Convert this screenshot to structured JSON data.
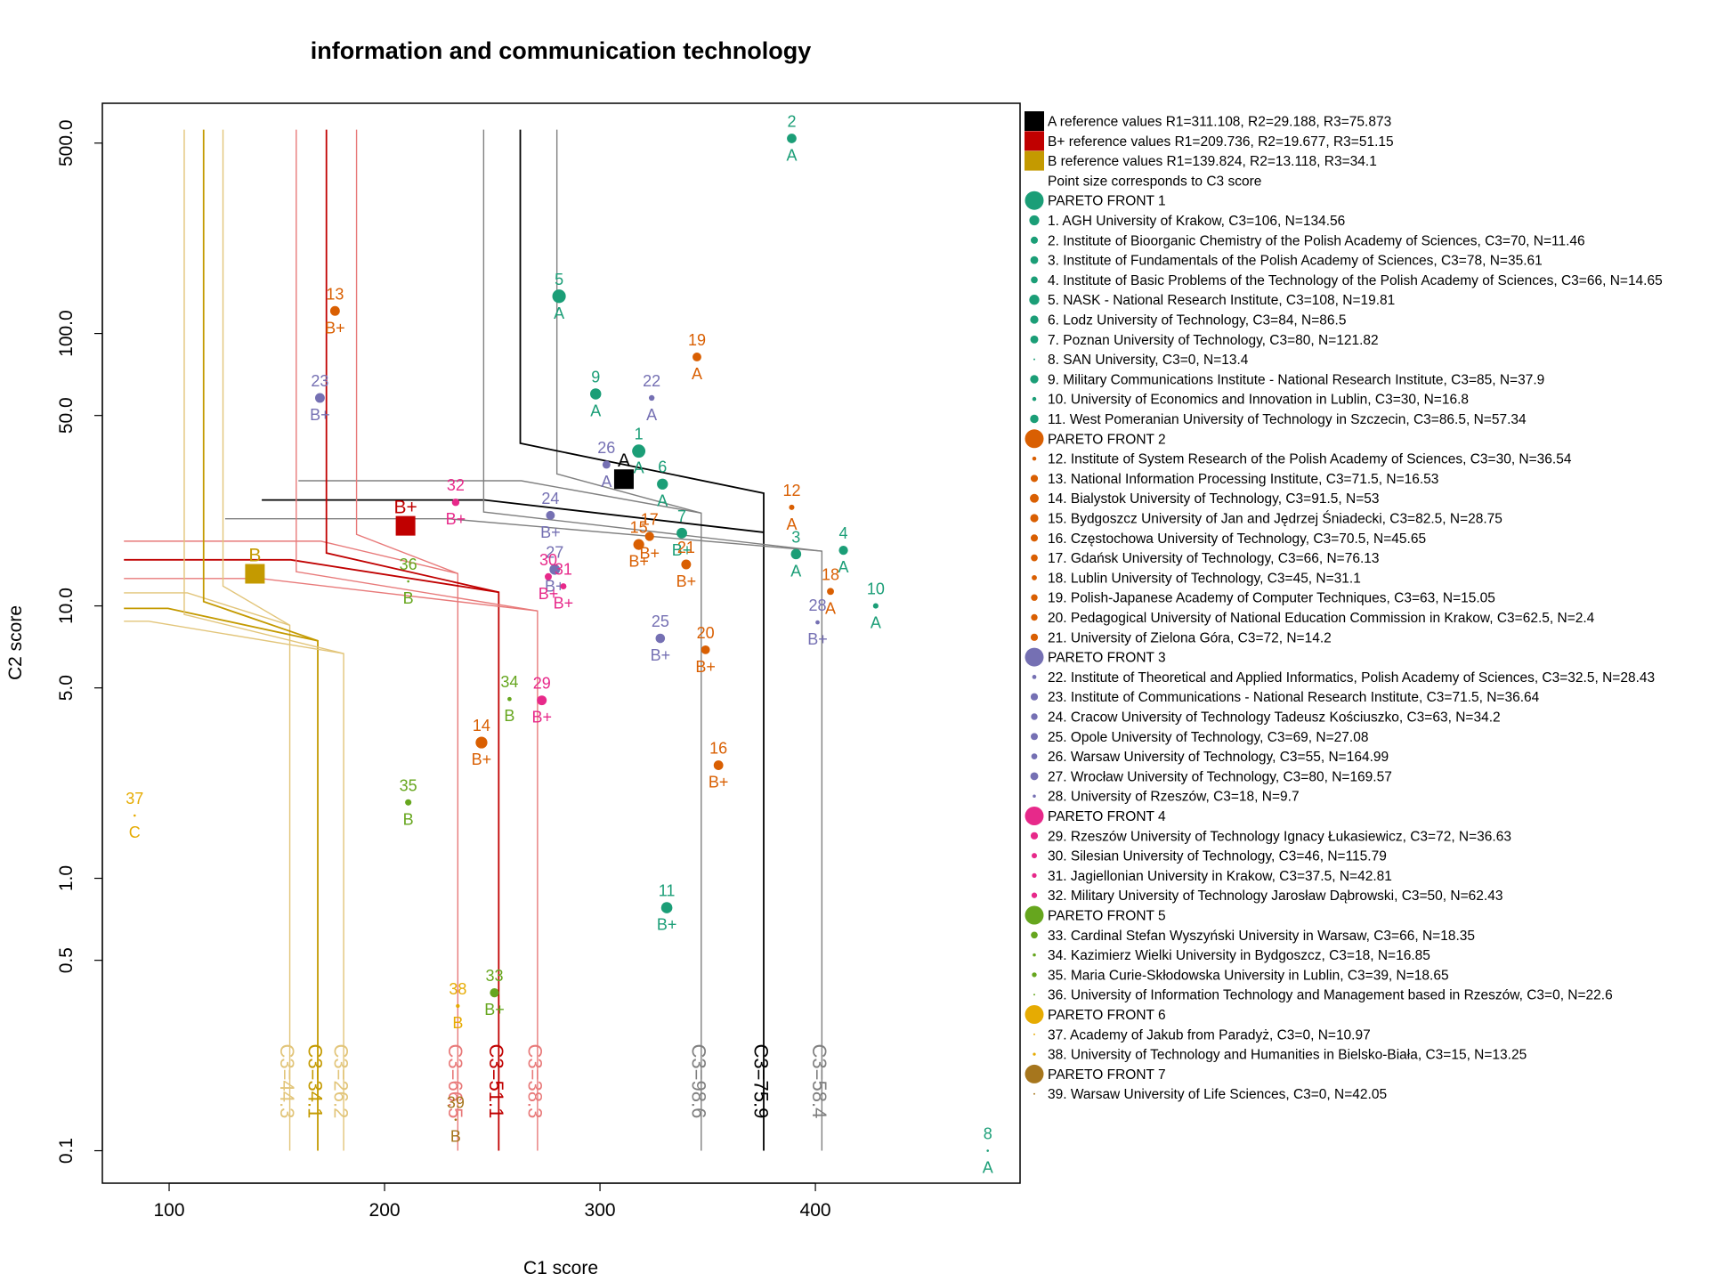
{
  "chart_data": {
    "type": "scatter",
    "title": "information and communication technology",
    "xlabel": "C1 score",
    "ylabel": "C2 score",
    "x_scale": "linear",
    "y_scale": "log",
    "xlim": [
      69,
      495
    ],
    "ylim": [
      0.076,
      700
    ],
    "x_ticks": [
      100,
      200,
      300,
      400
    ],
    "x_tick_labels": [
      "100",
      "200",
      "300",
      "400"
    ],
    "y_ticks": [
      0.1,
      0.5,
      1,
      5,
      10,
      50,
      100,
      500
    ],
    "y_tick_labels": [
      "0.1",
      "0.5",
      "1.0",
      "5.0",
      "10.0",
      "50.0",
      "100.0",
      "500.0"
    ],
    "grid": false,
    "legend_position": "right",
    "colors": {
      "front1": "#1b9e77",
      "front2": "#d95f02",
      "front3": "#7570b3",
      "front4": "#e7298a",
      "front5": "#66a61e",
      "front6": "#e6ab02",
      "front7": "#a6761d",
      "ref_A": "#000000",
      "ref_Bplus": "#c00000",
      "ref_B": "#c49a00",
      "iso_A_light": "#808080",
      "iso_Bplus_light": "#e87a7a",
      "iso_B_light": "#e2c57a"
    },
    "references": [
      {
        "key": "A",
        "label": "A",
        "x": 311.108,
        "y": 29.188,
        "color": "#000000"
      },
      {
        "key": "Bplus",
        "label": "B+",
        "x": 209.736,
        "y": 19.677,
        "color": "#c00000"
      },
      {
        "key": "B",
        "label": "B",
        "x": 139.824,
        "y": 13.118,
        "color": "#c49a00"
      }
    ],
    "iso_curves": [
      {
        "label": "C3=98.6",
        "color": "#808080",
        "x_vertical": 347,
        "y_horizontal": 40,
        "top_x": 280,
        "label_x": 346
      },
      {
        "label": "C3=75.9",
        "color": "#000000",
        "x_vertical": 376,
        "y_horizontal": 34,
        "top_x": 263,
        "label_x": 375,
        "start_x": 188
      },
      {
        "label": "C3=58.4",
        "color": "#808080",
        "x_vertical": 403,
        "y_horizontal": 29,
        "top_x": 246,
        "label_x": 402
      },
      {
        "label": "C3=66.5",
        "color": "#e87a7a",
        "x_vertical": 234,
        "y_horizontal": 24,
        "top_x": 187,
        "label_x": 233
      },
      {
        "label": "C3=51.1",
        "color": "#c00000",
        "x_vertical": 253,
        "y_horizontal": 20.5,
        "top_x": 173,
        "label_x": 252
      },
      {
        "label": "C3=38.3",
        "color": "#e87a7a",
        "x_vertical": 271,
        "y_horizontal": 17.5,
        "top_x": 159,
        "label_x": 270
      },
      {
        "label": "C3=44.3",
        "color": "#e2c57a",
        "x_vertical": 156,
        "y_horizontal": 15.5,
        "top_x": 125,
        "label_x": 155
      },
      {
        "label": "C3=34.1",
        "color": "#c49a00",
        "x_vertical": 169,
        "y_horizontal": 13.6,
        "top_x": 116,
        "label_x": 168
      },
      {
        "label": "C3=26.2",
        "color": "#e2c57a",
        "x_vertical": 181,
        "y_horizontal": 12.2,
        "top_x": 107,
        "label_x": 180
      }
    ],
    "points": [
      {
        "id": "1",
        "x": 318,
        "y": 37,
        "c3": 106,
        "front": 1,
        "grade": "A"
      },
      {
        "id": "2",
        "x": 389,
        "y": 520,
        "c3": 70,
        "front": 1,
        "grade": "A"
      },
      {
        "id": "3",
        "x": 391,
        "y": 15.5,
        "c3": 78,
        "front": 1,
        "grade": "A"
      },
      {
        "id": "4",
        "x": 413,
        "y": 16,
        "c3": 66,
        "front": 1,
        "grade": "A"
      },
      {
        "id": "5",
        "x": 281,
        "y": 137,
        "c3": 108,
        "front": 1,
        "grade": "A"
      },
      {
        "id": "6",
        "x": 329,
        "y": 28,
        "c3": 84,
        "front": 1,
        "grade": "A"
      },
      {
        "id": "7",
        "x": 338,
        "y": 18.5,
        "c3": 80,
        "front": 1,
        "grade": "B+"
      },
      {
        "id": "8",
        "x": 480,
        "y": 0.1,
        "c3": 0,
        "front": 1,
        "grade": "A"
      },
      {
        "id": "9",
        "x": 298,
        "y": 60,
        "c3": 85,
        "front": 1,
        "grade": "A"
      },
      {
        "id": "10",
        "x": 428,
        "y": 10,
        "c3": 30,
        "front": 1,
        "grade": "A"
      },
      {
        "id": "11",
        "x": 331,
        "y": 0.78,
        "c3": 86.5,
        "front": 1,
        "grade": "B+"
      },
      {
        "id": "12",
        "x": 389,
        "y": 23,
        "c3": 30,
        "front": 2,
        "grade": "A"
      },
      {
        "id": "13",
        "x": 177,
        "y": 121,
        "c3": 71.5,
        "front": 2,
        "grade": "B+"
      },
      {
        "id": "14",
        "x": 245,
        "y": 3.15,
        "c3": 91.5,
        "front": 2,
        "grade": "B+"
      },
      {
        "id": "15",
        "x": 318,
        "y": 16.8,
        "c3": 82.5,
        "front": 2,
        "grade": "B+"
      },
      {
        "id": "16",
        "x": 355,
        "y": 2.6,
        "c3": 70.5,
        "front": 2,
        "grade": "B+"
      },
      {
        "id": "17",
        "x": 323,
        "y": 18,
        "c3": 66,
        "front": 2,
        "grade": "B+"
      },
      {
        "id": "18",
        "x": 407,
        "y": 11.3,
        "c3": 45,
        "front": 2,
        "grade": "A"
      },
      {
        "id": "19",
        "x": 345,
        "y": 82,
        "c3": 63,
        "front": 2,
        "grade": "A"
      },
      {
        "id": "20",
        "x": 349,
        "y": 6.9,
        "c3": 62.5,
        "front": 2,
        "grade": "B+"
      },
      {
        "id": "21",
        "x": 340,
        "y": 14.2,
        "c3": 72,
        "front": 2,
        "grade": "B+"
      },
      {
        "id": "22",
        "x": 324,
        "y": 58,
        "c3": 32.5,
        "front": 3,
        "grade": "A"
      },
      {
        "id": "23",
        "x": 170,
        "y": 58,
        "c3": 71.5,
        "front": 3,
        "grade": "B+"
      },
      {
        "id": "24",
        "x": 277,
        "y": 21.5,
        "c3": 63,
        "front": 3,
        "grade": "B+"
      },
      {
        "id": "25",
        "x": 328,
        "y": 7.6,
        "c3": 69,
        "front": 3,
        "grade": "B+"
      },
      {
        "id": "26",
        "x": 303,
        "y": 33,
        "c3": 55,
        "front": 3,
        "grade": "A"
      },
      {
        "id": "27",
        "x": 279,
        "y": 13.6,
        "c3": 80,
        "front": 3,
        "grade": "B+"
      },
      {
        "id": "28",
        "x": 401,
        "y": 8.7,
        "c3": 18,
        "front": 3,
        "grade": "B+"
      },
      {
        "id": "29",
        "x": 273,
        "y": 4.5,
        "c3": 72,
        "front": 4,
        "grade": "B+"
      },
      {
        "id": "30",
        "x": 276,
        "y": 12.8,
        "c3": 46,
        "front": 4,
        "grade": "B+"
      },
      {
        "id": "31",
        "x": 283,
        "y": 11.8,
        "c3": 37.5,
        "front": 4,
        "grade": "B+"
      },
      {
        "id": "32",
        "x": 233,
        "y": 24,
        "c3": 50,
        "front": 4,
        "grade": "B+"
      },
      {
        "id": "33",
        "x": 251,
        "y": 0.38,
        "c3": 66,
        "front": 5,
        "grade": "B+"
      },
      {
        "id": "34",
        "x": 258,
        "y": 4.55,
        "c3": 18,
        "front": 5,
        "grade": "B"
      },
      {
        "id": "35",
        "x": 211,
        "y": 1.9,
        "c3": 39,
        "front": 5,
        "grade": "B"
      },
      {
        "id": "36",
        "x": 211,
        "y": 12.3,
        "c3": 0,
        "front": 5,
        "grade": "B"
      },
      {
        "id": "37",
        "x": 84,
        "y": 1.7,
        "c3": 0,
        "front": 6,
        "grade": "C"
      },
      {
        "id": "38",
        "x": 234,
        "y": 0.34,
        "c3": 15,
        "front": 6,
        "grade": "B"
      },
      {
        "id": "39",
        "x": 233,
        "y": 0.13,
        "c3": 0,
        "front": 7,
        "grade": "B"
      }
    ],
    "legend": [
      {
        "kind": "ref",
        "color": "#000000",
        "text": "A reference values R1=311.108, R2=29.188, R3=75.873"
      },
      {
        "kind": "ref",
        "color": "#c00000",
        "text": "B+ reference values R1=209.736, R2=19.677, R3=51.15"
      },
      {
        "kind": "ref",
        "color": "#c49a00",
        "text": "B reference values R1=139.824, R2=13.118, R3=34.1"
      },
      {
        "kind": "note",
        "color": "",
        "text": "Point size corresponds to C3 score"
      },
      {
        "kind": "front",
        "color": "#1b9e77",
        "text": "PARETO FRONT 1"
      },
      {
        "kind": "point",
        "color": "#1b9e77",
        "c3": 106,
        "text": "1. AGH University of Krakow, C3=106, N=134.56"
      },
      {
        "kind": "point",
        "color": "#1b9e77",
        "c3": 70,
        "text": "2. Institute of Bioorganic Chemistry of the Polish Academy of Sciences, C3=70, N=11.46"
      },
      {
        "kind": "point",
        "color": "#1b9e77",
        "c3": 78,
        "text": "3. Institute of Fundamentals of the Polish Academy of Sciences, C3=78, N=35.61"
      },
      {
        "kind": "point",
        "color": "#1b9e77",
        "c3": 66,
        "text": "4. Institute of Basic Problems of the Technology of the Polish Academy of Sciences, C3=66, N=14.65"
      },
      {
        "kind": "point",
        "color": "#1b9e77",
        "c3": 108,
        "text": "5. NASK - National Research Institute, C3=108, N=19.81"
      },
      {
        "kind": "point",
        "color": "#1b9e77",
        "c3": 84,
        "text": "6. Lodz University of Technology, C3=84, N=86.5"
      },
      {
        "kind": "point",
        "color": "#1b9e77",
        "c3": 80,
        "text": "7. Poznan University of Technology, C3=80, N=121.82"
      },
      {
        "kind": "point",
        "color": "#1b9e77",
        "c3": 0,
        "text": "8. SAN University, C3=0, N=13.4"
      },
      {
        "kind": "point",
        "color": "#1b9e77",
        "c3": 85,
        "text": "9. Military Communications Institute - National Research Institute, C3=85, N=37.9"
      },
      {
        "kind": "point",
        "color": "#1b9e77",
        "c3": 30,
        "text": "10. University of Economics and Innovation in Lublin, C3=30, N=16.8"
      },
      {
        "kind": "point",
        "color": "#1b9e77",
        "c3": 86.5,
        "text": "11. West Pomeranian University of Technology in Szczecin, C3=86.5, N=57.34"
      },
      {
        "kind": "front",
        "color": "#d95f02",
        "text": "PARETO FRONT 2"
      },
      {
        "kind": "point",
        "color": "#d95f02",
        "c3": 30,
        "text": "12. Institute of System Research of the Polish Academy of Sciences, C3=30, N=36.54"
      },
      {
        "kind": "point",
        "color": "#d95f02",
        "c3": 71.5,
        "text": "13. National Information Processing Institute, C3=71.5, N=16.53"
      },
      {
        "kind": "point",
        "color": "#d95f02",
        "c3": 91.5,
        "text": "14. Bialystok University of Technology, C3=91.5, N=53"
      },
      {
        "kind": "point",
        "color": "#d95f02",
        "c3": 82.5,
        "text": "15. Bydgoszcz University of Jan and Jędrzej Śniadecki, C3=82.5, N=28.75"
      },
      {
        "kind": "point",
        "color": "#d95f02",
        "c3": 70.5,
        "text": "16. Częstochowa University of Technology, C3=70.5, N=45.65"
      },
      {
        "kind": "point",
        "color": "#d95f02",
        "c3": 66,
        "text": "17. Gdańsk University of Technology, C3=66, N=76.13"
      },
      {
        "kind": "point",
        "color": "#d95f02",
        "c3": 45,
        "text": "18. Lublin University of Technology, C3=45, N=31.1"
      },
      {
        "kind": "point",
        "color": "#d95f02",
        "c3": 63,
        "text": "19. Polish-Japanese Academy of Computer Techniques, C3=63, N=15.05"
      },
      {
        "kind": "point",
        "color": "#d95f02",
        "c3": 62.5,
        "text": "20. Pedagogical University of National Education Commission in Krakow, C3=62.5, N=2.4"
      },
      {
        "kind": "point",
        "color": "#d95f02",
        "c3": 72,
        "text": "21. University of Zielona Góra, C3=72, N=14.2"
      },
      {
        "kind": "front",
        "color": "#7570b3",
        "text": "PARETO FRONT 3"
      },
      {
        "kind": "point",
        "color": "#7570b3",
        "c3": 32.5,
        "text": "22. Institute of Theoretical and Applied Informatics, Polish Academy of Sciences, C3=32.5, N=28.43"
      },
      {
        "kind": "point",
        "color": "#7570b3",
        "c3": 71.5,
        "text": "23. Institute of Communications - National Research Institute, C3=71.5, N=36.64"
      },
      {
        "kind": "point",
        "color": "#7570b3",
        "c3": 63,
        "text": "24. Cracow University of Technology Tadeusz Kościuszko, C3=63, N=34.2"
      },
      {
        "kind": "point",
        "color": "#7570b3",
        "c3": 69,
        "text": "25. Opole University of Technology, C3=69, N=27.08"
      },
      {
        "kind": "point",
        "color": "#7570b3",
        "c3": 55,
        "text": "26. Warsaw University of Technology, C3=55, N=164.99"
      },
      {
        "kind": "point",
        "color": "#7570b3",
        "c3": 80,
        "text": "27. Wrocław University of Technology, C3=80, N=169.57"
      },
      {
        "kind": "point",
        "color": "#7570b3",
        "c3": 18,
        "text": "28. University of Rzeszów, C3=18, N=9.7"
      },
      {
        "kind": "front",
        "color": "#e7298a",
        "text": "PARETO FRONT 4"
      },
      {
        "kind": "point",
        "color": "#e7298a",
        "c3": 72,
        "text": "29. Rzeszów University of Technology Ignacy Łukasiewicz, C3=72, N=36.63"
      },
      {
        "kind": "point",
        "color": "#e7298a",
        "c3": 46,
        "text": "30. Silesian University of Technology, C3=46, N=115.79"
      },
      {
        "kind": "point",
        "color": "#e7298a",
        "c3": 37.5,
        "text": "31. Jagiellonian University in Krakow, C3=37.5, N=42.81"
      },
      {
        "kind": "point",
        "color": "#e7298a",
        "c3": 50,
        "text": "32. Military University of Technology Jarosław Dąbrowski, C3=50, N=62.43"
      },
      {
        "kind": "front",
        "color": "#66a61e",
        "text": "PARETO FRONT 5"
      },
      {
        "kind": "point",
        "color": "#66a61e",
        "c3": 66,
        "text": "33. Cardinal Stefan Wyszyński University in Warsaw, C3=66, N=18.35"
      },
      {
        "kind": "point",
        "color": "#66a61e",
        "c3": 18,
        "text": "34. Kazimierz Wielki University in Bydgoszcz, C3=18, N=16.85"
      },
      {
        "kind": "point",
        "color": "#66a61e",
        "c3": 39,
        "text": "35. Maria Curie-Skłodowska University in Lublin, C3=39, N=18.65"
      },
      {
        "kind": "point",
        "color": "#66a61e",
        "c3": 0,
        "text": "36. University of Information Technology and Management based in Rzeszów, C3=0, N=22.6"
      },
      {
        "kind": "front",
        "color": "#e6ab02",
        "text": "PARETO FRONT 6"
      },
      {
        "kind": "point",
        "color": "#e6ab02",
        "c3": 0,
        "text": "37. Academy of Jakub from Paradyż, C3=0, N=10.97"
      },
      {
        "kind": "point",
        "color": "#e6ab02",
        "c3": 15,
        "text": "38. University of Technology and Humanities in Bielsko-Biała, C3=15, N=13.25"
      },
      {
        "kind": "front",
        "color": "#a6761d",
        "text": "PARETO FRONT 7"
      },
      {
        "kind": "point",
        "color": "#a6761d",
        "c3": 0,
        "text": "39. Warsaw University of Life Sciences, C3=0, N=42.05"
      }
    ]
  }
}
